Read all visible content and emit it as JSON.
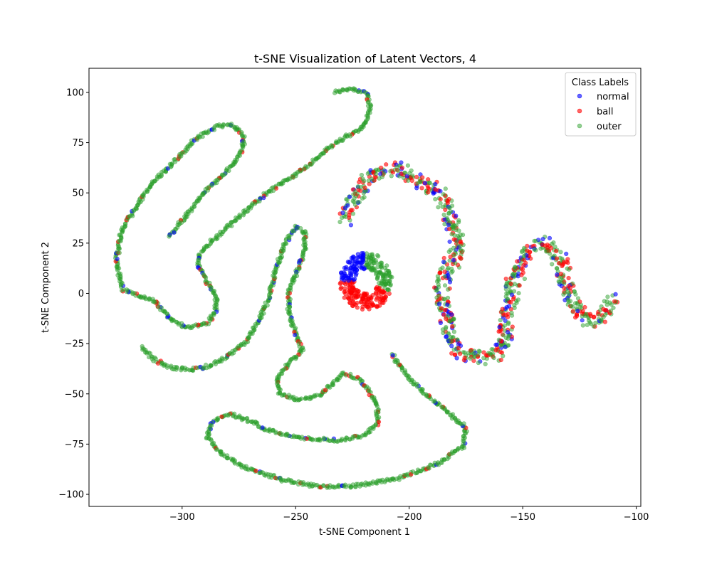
{
  "chart_data": {
    "type": "scatter",
    "title": "t-SNE Visualization of Latent Vectors, 4",
    "xlabel": "t-SNE Component 1",
    "ylabel": "t-SNE Component 2",
    "xlim": [
      -341,
      -98
    ],
    "ylim": [
      -106,
      112
    ],
    "xticks": [
      -300,
      -250,
      -200,
      -150,
      -100
    ],
    "yticks": [
      -100,
      -75,
      -50,
      -25,
      0,
      25,
      50,
      75,
      100
    ],
    "xtick_labels": [
      "−300",
      "−250",
      "−200",
      "−150",
      "−100"
    ],
    "ytick_labels": [
      "−100",
      "−75",
      "−50",
      "−25",
      "0",
      "25",
      "50",
      "75",
      "100"
    ],
    "grid": false,
    "legend": {
      "title": "Class Labels",
      "placement": "top-right",
      "entries": [
        "normal",
        "ball",
        "outer"
      ]
    },
    "series": [
      {
        "name": "normal",
        "color": "#0000ff"
      },
      {
        "name": "ball",
        "color": "#ff0000"
      },
      {
        "name": "outer",
        "color": "#2ca02c"
      }
    ],
    "clusters": {
      "outer_band": {
        "composition": "mostly outer, sparse normal and ball",
        "path": [
          [
            -233,
            100
          ],
          [
            -226,
            102
          ],
          [
            -219,
            100
          ],
          [
            -217,
            92
          ],
          [
            -220,
            83
          ],
          [
            -228,
            78
          ],
          [
            -237,
            71
          ],
          [
            -245,
            63
          ],
          [
            -256,
            55
          ],
          [
            -266,
            47
          ],
          [
            -276,
            37
          ],
          [
            -287,
            26
          ],
          [
            -292,
            20
          ],
          [
            -293,
            14
          ],
          [
            -289,
            6
          ],
          [
            -285,
            -1
          ],
          [
            -285,
            -9
          ],
          [
            -289,
            -15
          ],
          [
            -298,
            -17
          ],
          [
            -305,
            -13
          ],
          [
            -312,
            -4
          ],
          [
            -320,
            -1
          ],
          [
            -326,
            2
          ],
          [
            -329,
            15
          ],
          [
            -327,
            30
          ],
          [
            -322,
            40
          ],
          [
            -313,
            55
          ],
          [
            -303,
            66
          ],
          [
            -295,
            76
          ],
          [
            -285,
            83
          ],
          [
            -278,
            84
          ],
          [
            -273,
            79
          ],
          [
            -273,
            73
          ],
          [
            -277,
            65
          ],
          [
            -284,
            57
          ],
          [
            -292,
            48
          ],
          [
            -300,
            36
          ],
          [
            -306,
            28
          ]
        ]
      },
      "lower_band": {
        "composition": "mostly outer, sparse normal and ball",
        "path": [
          [
            -318,
            -27
          ],
          [
            -312,
            -33
          ],
          [
            -305,
            -37
          ],
          [
            -296,
            -38
          ],
          [
            -288,
            -36
          ],
          [
            -279,
            -31
          ],
          [
            -272,
            -24
          ],
          [
            -266,
            -13
          ],
          [
            -262,
            -3
          ],
          [
            -259,
            11
          ],
          [
            -255,
            24
          ],
          [
            -250,
            33
          ],
          [
            -246,
            30
          ],
          [
            -246,
            22
          ],
          [
            -249,
            12
          ],
          [
            -253,
            1
          ],
          [
            -253,
            -10
          ],
          [
            -250,
            -20
          ],
          [
            -247,
            -28
          ],
          [
            -253,
            -35
          ],
          [
            -258,
            -42
          ],
          [
            -257,
            -50
          ],
          [
            -249,
            -53
          ],
          [
            -240,
            -51
          ],
          [
            -234,
            -45
          ],
          [
            -229,
            -40
          ],
          [
            -223,
            -42
          ],
          [
            -218,
            -48
          ],
          [
            -214,
            -56
          ],
          [
            -214,
            -65
          ],
          [
            -220,
            -71
          ],
          [
            -232,
            -73
          ],
          [
            -248,
            -72
          ],
          [
            -262,
            -68
          ],
          [
            -271,
            -63
          ],
          [
            -279,
            -60
          ],
          [
            -287,
            -64
          ],
          [
            -289,
            -72
          ],
          [
            -282,
            -80
          ],
          [
            -272,
            -87
          ],
          [
            -255,
            -93
          ],
          [
            -240,
            -96
          ],
          [
            -225,
            -96
          ],
          [
            -205,
            -92
          ],
          [
            -188,
            -85
          ],
          [
            -176,
            -76
          ],
          [
            -175,
            -67
          ],
          [
            -182,
            -60
          ],
          [
            -191,
            -52
          ],
          [
            -200,
            -42
          ],
          [
            -208,
            -30
          ]
        ]
      },
      "right_band": {
        "composition": "mixed normal, ball and outer",
        "path": [
          [
            -228,
            37
          ],
          [
            -224,
            48
          ],
          [
            -218,
            57
          ],
          [
            -212,
            61
          ],
          [
            -205,
            62
          ],
          [
            -200,
            58
          ],
          [
            -194,
            55
          ],
          [
            -188,
            52
          ],
          [
            -185,
            47
          ],
          [
            -182,
            38
          ],
          [
            -180,
            30
          ],
          [
            -178,
            21
          ],
          [
            -182,
            14
          ],
          [
            -185,
            6
          ],
          [
            -186,
            -3
          ],
          [
            -184,
            -10
          ],
          [
            -183,
            -18
          ],
          [
            -181,
            -25
          ],
          [
            -176,
            -30
          ],
          [
            -168,
            -32
          ],
          [
            -161,
            -30
          ],
          [
            -158,
            -24
          ],
          [
            -157,
            -12
          ],
          [
            -155,
            -2
          ],
          [
            -154,
            6
          ],
          [
            -151,
            13
          ],
          [
            -149,
            20
          ],
          [
            -142,
            25
          ],
          [
            -136,
            22
          ],
          [
            -133,
            14
          ],
          [
            -131,
            5
          ],
          [
            -128,
            -3
          ],
          [
            -126,
            -9
          ],
          [
            -122,
            -13
          ],
          [
            -117,
            -14
          ],
          [
            -113,
            -9
          ],
          [
            -110,
            -3
          ]
        ]
      },
      "ring": {
        "center": [
          -219,
          6
        ],
        "radius": 13,
        "composition": "normal upper-left, outer right, ball lower"
      }
    }
  }
}
